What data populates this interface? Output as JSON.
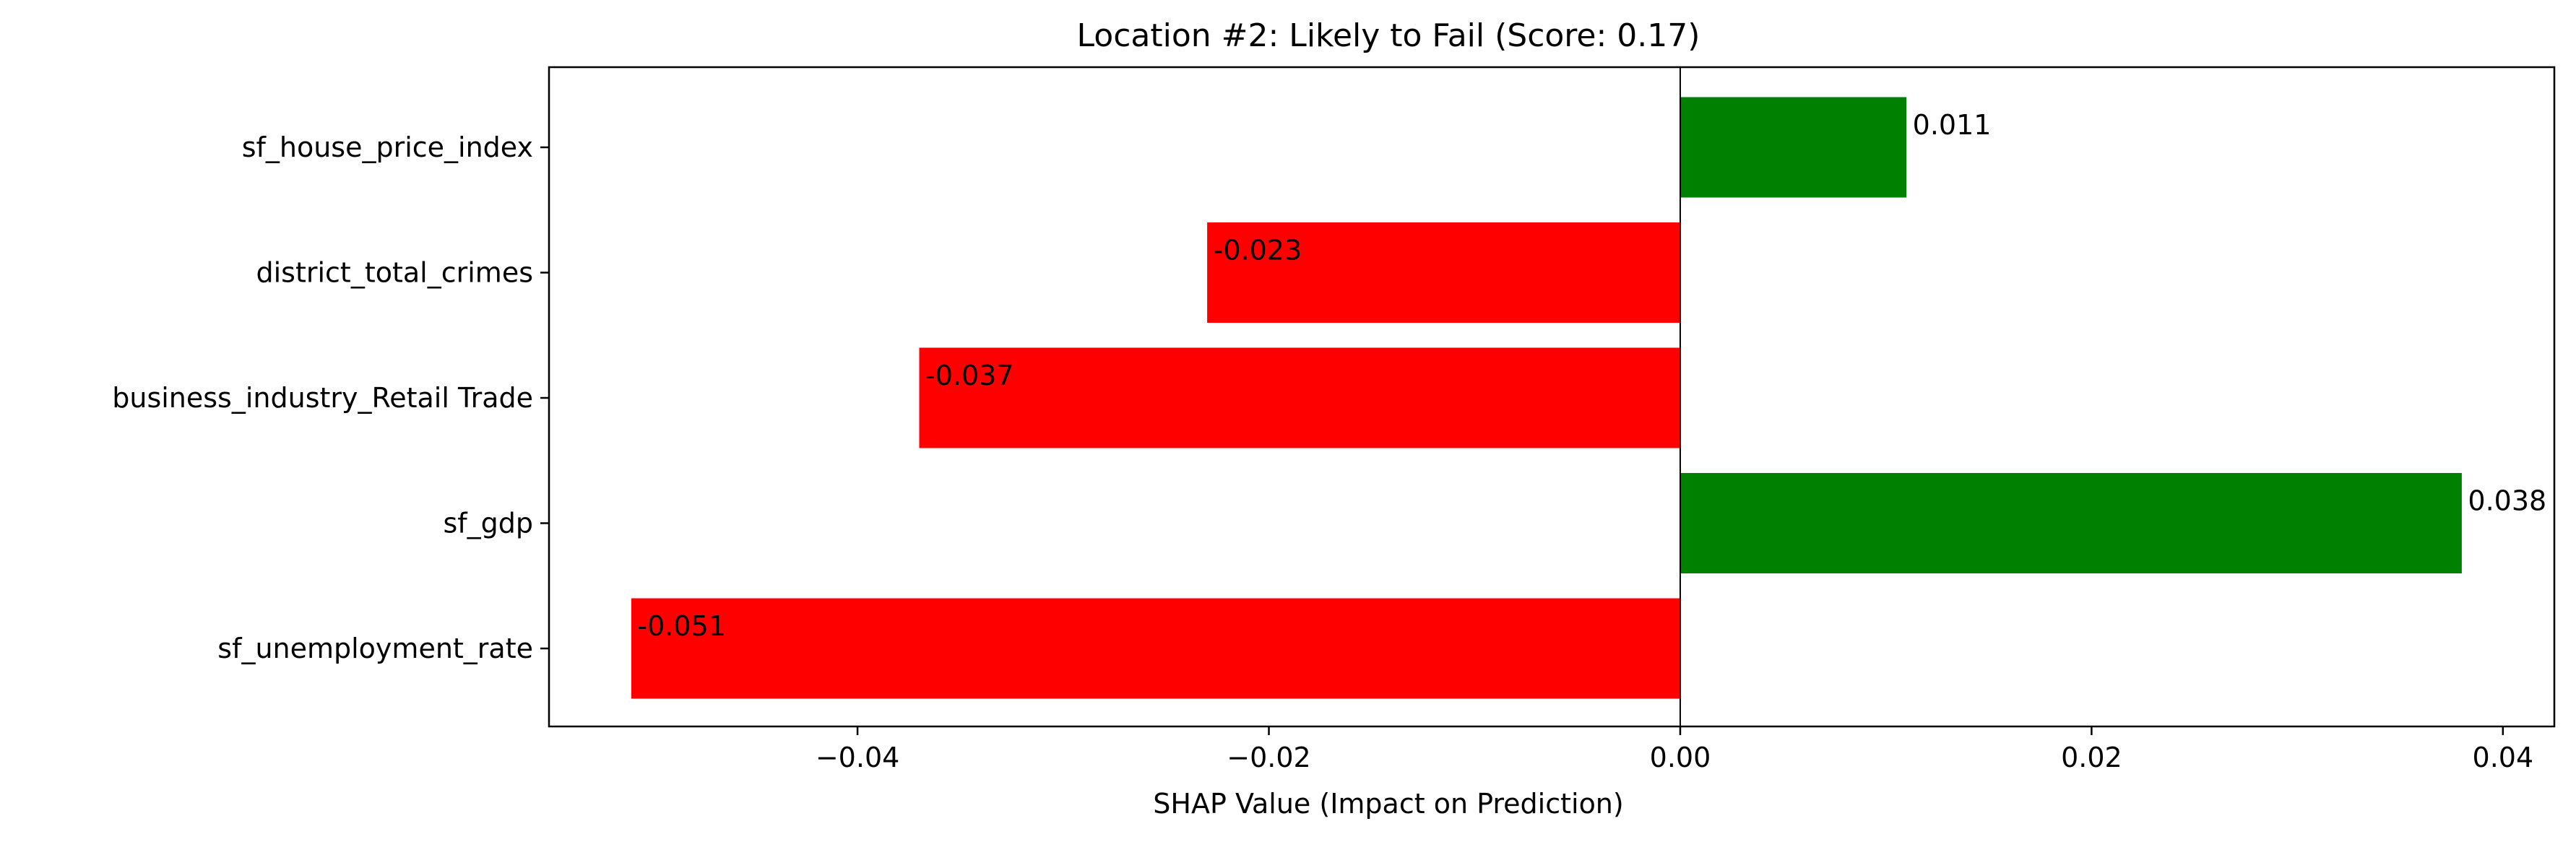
{
  "chart_data": {
    "type": "bar",
    "orientation": "horizontal",
    "title": "Location #2: Likely to Fail (Score: 0.17)",
    "xlabel": "SHAP Value (Impact on Prediction)",
    "ylabel": "",
    "categories": [
      "sf_house_price_index",
      "district_total_crimes",
      "business_industry_Retail Trade",
      "sf_gdp",
      "sf_unemployment_rate"
    ],
    "values": [
      0.011,
      -0.023,
      -0.037,
      0.038,
      -0.051
    ],
    "value_labels": [
      "0.011",
      "-0.023",
      "-0.037",
      "0.038",
      "-0.051"
    ],
    "x_ticks": [
      -0.04,
      -0.02,
      0.0,
      0.02,
      0.04
    ],
    "x_tick_labels": [
      "−0.04",
      "−0.02",
      "0.00",
      "0.02",
      "0.04"
    ],
    "xlim": [
      -0.055,
      0.0425
    ],
    "grid": false,
    "legend": "none",
    "colors": {
      "positive": "#008000",
      "negative": "#ff0000",
      "axis": "#000000"
    }
  }
}
